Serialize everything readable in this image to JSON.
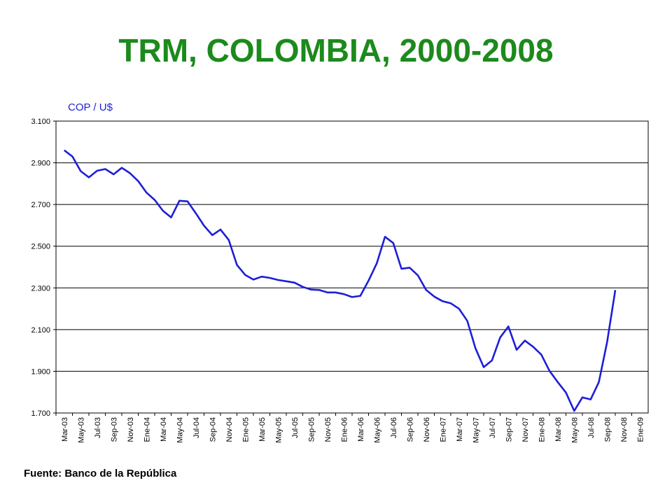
{
  "page": {
    "title": "TRM, COLOMBIA, 2000-2008",
    "source": "Fuente: Banco de la República"
  },
  "colors": {
    "title": "#1c8a1c",
    "line": "#1e1ed8",
    "unit": "#1e1ed8"
  },
  "chart_data": {
    "type": "line",
    "title": "TRM, COLOMBIA, 2000-2008",
    "ylabel": "COP / U$",
    "xlabel": "",
    "ylim": [
      1700,
      3100
    ],
    "yticks": [
      1700,
      1900,
      2100,
      2300,
      2500,
      2700,
      2900,
      3100
    ],
    "ytick_labels": [
      "1.700",
      "1.900",
      "2.100",
      "2.300",
      "2.500",
      "2.700",
      "2.900",
      "3.100"
    ],
    "grid": true,
    "legend": "none",
    "categories": [
      "Mar-03",
      "May-03",
      "Jul-03",
      "Sep-03",
      "Nov-03",
      "Ene-04",
      "Mar-04",
      "May-04",
      "Jul-04",
      "Sep-04",
      "Nov-04",
      "Ene-05",
      "Mar-05",
      "May-05",
      "Jul-05",
      "Sep-05",
      "Nov-05",
      "Ene-06",
      "Mar-06",
      "May-06",
      "Jul-06",
      "Sep-06",
      "Nov-06",
      "Ene-07",
      "Mar-07",
      "May-07",
      "Jul-07",
      "Sep-07",
      "Nov-07",
      "Ene-08",
      "Mar-08",
      "May-08",
      "Jul-08",
      "Sep-08",
      "Nov-08",
      "Ene-09"
    ],
    "series": [
      {
        "x": [
          "Mar-03",
          "Abr-03",
          "May-03",
          "Jun-03",
          "Jul-03",
          "Ago-03",
          "Sep-03",
          "Oct-03",
          "Nov-03",
          "Dic-03",
          "Ene-04",
          "Feb-04",
          "Mar-04",
          "Abr-04",
          "May-04",
          "Jun-04",
          "Jul-04",
          "Ago-04",
          "Sep-04",
          "Oct-04",
          "Nov-04",
          "Dic-04",
          "Ene-05",
          "Feb-05",
          "Mar-05",
          "Abr-05",
          "May-05",
          "Jun-05",
          "Jul-05",
          "Ago-05",
          "Sep-05",
          "Oct-05",
          "Nov-05",
          "Dic-05",
          "Ene-06",
          "Feb-06",
          "Mar-06",
          "Abr-06",
          "May-06",
          "Jun-06",
          "Jul-06",
          "Ago-06",
          "Sep-06",
          "Oct-06",
          "Nov-06",
          "Dic-06",
          "Ene-07",
          "Feb-07",
          "Mar-07",
          "Abr-07",
          "May-07",
          "Jun-07",
          "Jul-07",
          "Ago-07",
          "Sep-07",
          "Oct-07",
          "Nov-07",
          "Dic-07",
          "Ene-08",
          "Feb-08",
          "Mar-08",
          "Abr-08",
          "May-08",
          "Jun-08",
          "Jul-08",
          "Ago-08",
          "Sep-08",
          "Oct-08"
        ],
        "values": [
          2960,
          2930,
          2860,
          2830,
          2862,
          2870,
          2845,
          2876,
          2850,
          2812,
          2757,
          2722,
          2670,
          2638,
          2718,
          2715,
          2658,
          2598,
          2553,
          2580,
          2530,
          2410,
          2362,
          2340,
          2354,
          2348,
          2338,
          2332,
          2325,
          2305,
          2292,
          2290,
          2278,
          2278,
          2270,
          2256,
          2262,
          2335,
          2418,
          2545,
          2515,
          2392,
          2397,
          2360,
          2290,
          2258,
          2236,
          2226,
          2200,
          2142,
          2010,
          1920,
          1952,
          2062,
          2115,
          2003,
          2047,
          2018,
          1980,
          1902,
          1848,
          1798,
          1710,
          1775,
          1765,
          1848,
          2040,
          2290
        ]
      }
    ]
  }
}
